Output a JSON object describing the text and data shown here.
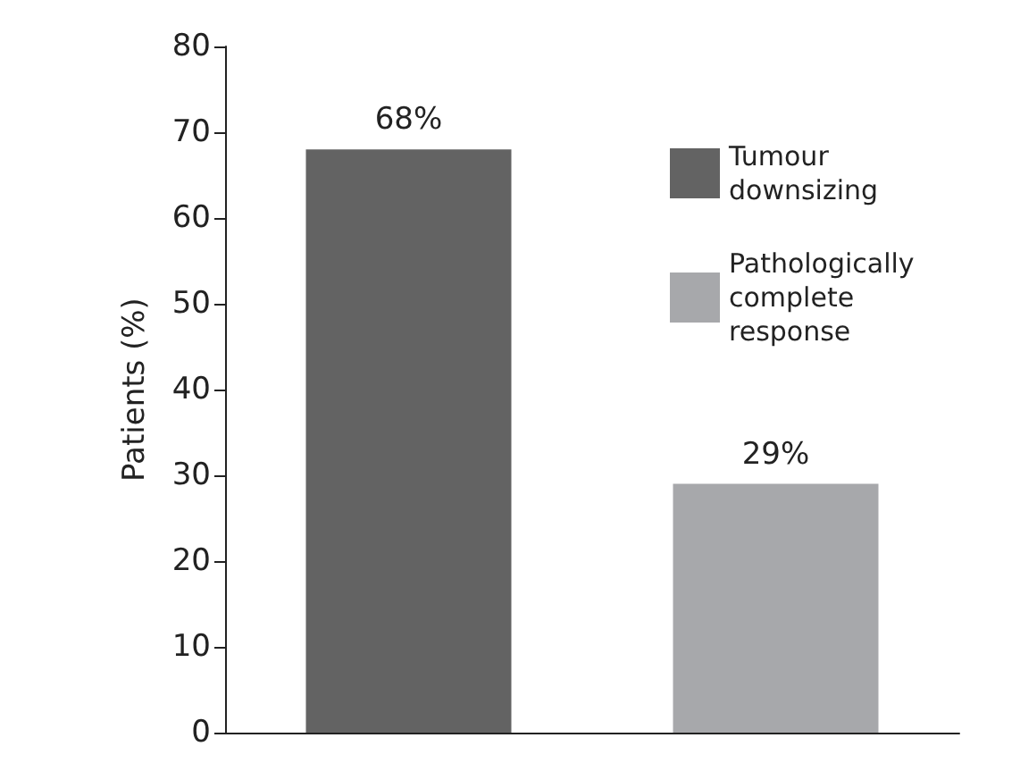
{
  "chart_data": {
    "type": "bar",
    "ylabel": "Patients (%)",
    "categories": [
      null,
      null
    ],
    "series": [
      {
        "name": "Tumour downsizing",
        "color": "#636363",
        "values": [
          68,
          null
        ],
        "value_labels": [
          "68%",
          null
        ]
      },
      {
        "name": "Pathologically complete response",
        "color": "#a7a8ab",
        "values": [
          null,
          29
        ],
        "value_labels": [
          null,
          "29%"
        ]
      }
    ],
    "ylim": [
      0,
      80
    ],
    "yticks": [
      0,
      10,
      20,
      30,
      40,
      50,
      60,
      70,
      80
    ],
    "grid": false,
    "legend": "top right"
  }
}
